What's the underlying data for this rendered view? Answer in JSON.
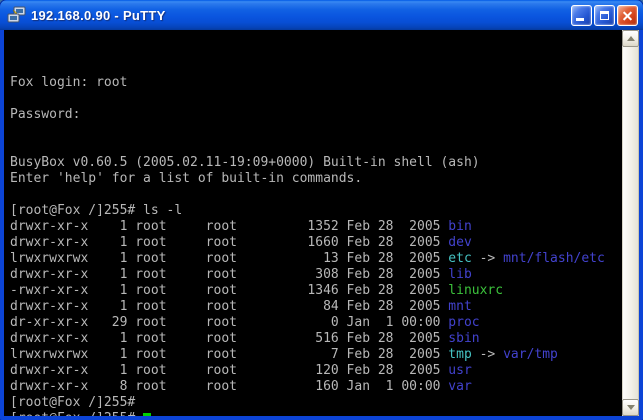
{
  "window": {
    "title": "192.168.0.90 - PuTTY"
  },
  "titlebar": {
    "buttons": [
      {
        "name": "minimize"
      },
      {
        "name": "maximize"
      },
      {
        "name": "close"
      }
    ]
  },
  "terminal": {
    "colors": {
      "fg": "#b8b8b8",
      "dir": "#4242cd",
      "exec": "#3cc23c",
      "link": "#45c2c2",
      "cursor": "#00d300"
    },
    "lines": [
      [
        {
          "t": "Fox login: root",
          "c": "fg"
        }
      ],
      [],
      [
        {
          "t": "Password:",
          "c": "fg"
        }
      ],
      [],
      [],
      [
        {
          "t": "BusyBox v0.60.5 (2005.02.11-19:09+0000) Built-in shell (ash)",
          "c": "fg"
        }
      ],
      [
        {
          "t": "Enter 'help' for a list of built-in commands.",
          "c": "fg"
        }
      ],
      [],
      [
        {
          "t": "[root@Fox /]255# ls -l",
          "c": "fg"
        }
      ],
      [
        {
          "t": "drwxr-xr-x    1 root     root         1352 Feb 28  2005 ",
          "c": "fg"
        },
        {
          "t": "bin",
          "c": "dir"
        }
      ],
      [
        {
          "t": "drwxr-xr-x    1 root     root         1660 Feb 28  2005 ",
          "c": "fg"
        },
        {
          "t": "dev",
          "c": "dir"
        }
      ],
      [
        {
          "t": "lrwxrwxrwx    1 root     root           13 Feb 28  2005 ",
          "c": "fg"
        },
        {
          "t": "etc",
          "c": "link"
        },
        {
          "t": " -> ",
          "c": "fg"
        },
        {
          "t": "mnt/flash/etc",
          "c": "dir"
        }
      ],
      [
        {
          "t": "drwxr-xr-x    1 root     root          308 Feb 28  2005 ",
          "c": "fg"
        },
        {
          "t": "lib",
          "c": "dir"
        }
      ],
      [
        {
          "t": "-rwxr-xr-x    1 root     root         1346 Feb 28  2005 ",
          "c": "fg"
        },
        {
          "t": "linuxrc",
          "c": "exec"
        }
      ],
      [
        {
          "t": "drwxr-xr-x    1 root     root           84 Feb 28  2005 ",
          "c": "fg"
        },
        {
          "t": "mnt",
          "c": "dir"
        }
      ],
      [
        {
          "t": "dr-xr-xr-x   29 root     root            0 Jan  1 00:00 ",
          "c": "fg"
        },
        {
          "t": "proc",
          "c": "dir"
        }
      ],
      [
        {
          "t": "drwxr-xr-x    1 root     root          516 Feb 28  2005 ",
          "c": "fg"
        },
        {
          "t": "sbin",
          "c": "dir"
        }
      ],
      [
        {
          "t": "lrwxrwxrwx    1 root     root            7 Feb 28  2005 ",
          "c": "fg"
        },
        {
          "t": "tmp",
          "c": "link"
        },
        {
          "t": " -> ",
          "c": "fg"
        },
        {
          "t": "var/tmp",
          "c": "dir"
        }
      ],
      [
        {
          "t": "drwxr-xr-x    1 root     root          120 Feb 28  2005 ",
          "c": "fg"
        },
        {
          "t": "usr",
          "c": "dir"
        }
      ],
      [
        {
          "t": "drwxr-xr-x    8 root     root          160 Jan  1 00:00 ",
          "c": "fg"
        },
        {
          "t": "var",
          "c": "dir"
        }
      ],
      [
        {
          "t": "[root@Fox /]255#",
          "c": "fg"
        }
      ],
      [
        {
          "t": "[root@Fox /]255# ",
          "c": "fg"
        },
        {
          "t": " ",
          "c": "cursor"
        }
      ]
    ]
  }
}
